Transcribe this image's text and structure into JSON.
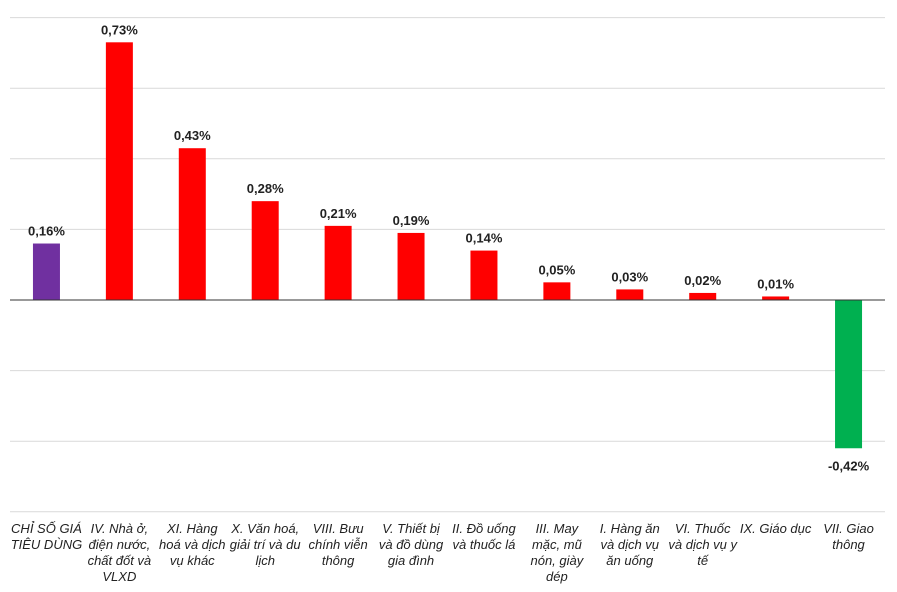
{
  "chart_data": {
    "type": "bar",
    "categories": [
      "CHỈ SỐ GIÁ TIÊU DÙNG",
      "IV. Nhà ở, điện nước, chất đốt và VLXD",
      "XI. Hàng hoá và dịch vụ khác",
      "X. Văn hoá, giải trí và du lịch",
      "VIII. Bưu chính viễn thông",
      "V. Thiết bị và đồ dùng gia đình",
      "II. Đồ uống và thuốc lá",
      "III. May mặc, mũ nón, giày dép",
      "I. Hàng ăn và dịch vụ ăn uống",
      "VI. Thuốc và dịch vụ y tế",
      "IX. Giáo dục",
      "VII. Giao thông"
    ],
    "values": [
      0.16,
      0.73,
      0.43,
      0.28,
      0.21,
      0.19,
      0.14,
      0.05,
      0.03,
      0.02,
      0.01,
      -0.42
    ],
    "value_labels": [
      "0,16%",
      "0,73%",
      "0,43%",
      "0,28%",
      "0,21%",
      "0,19%",
      "0,14%",
      "0,05%",
      "0,03%",
      "0,02%",
      "0,01%",
      "-0,42%"
    ],
    "bar_colors": [
      "#7030a0",
      "#ff0000",
      "#ff0000",
      "#ff0000",
      "#ff0000",
      "#ff0000",
      "#ff0000",
      "#ff0000",
      "#ff0000",
      "#ff0000",
      "#ff0000",
      "#00b050"
    ],
    "title": "",
    "xlabel": "",
    "ylabel": "",
    "ylim": [
      -0.6,
      0.8
    ],
    "y_grid_step": 0.2,
    "grid": true,
    "legend": "none"
  }
}
